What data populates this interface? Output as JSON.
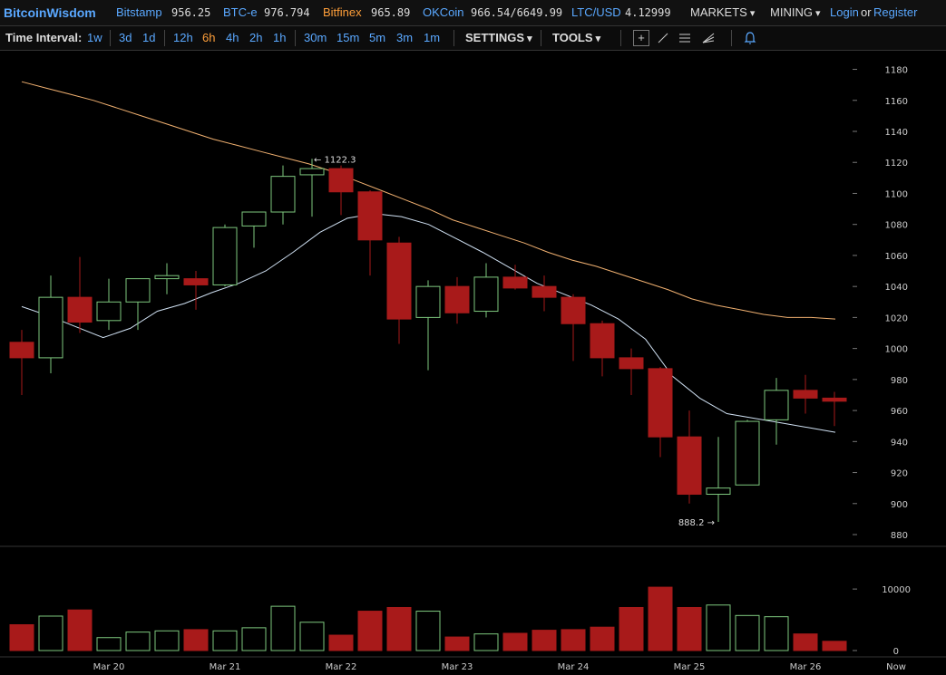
{
  "header": {
    "brand": "BitcoinWisdom",
    "markets": [
      {
        "name": "Bitstamp",
        "price": "956.25"
      },
      {
        "name": "BTC-e",
        "price": "976.794"
      },
      {
        "name": "Bitfinex",
        "price": "965.89"
      },
      {
        "name": "OKCoin",
        "price": "966.54/6649.99"
      },
      {
        "name": "LTC/USD",
        "price": "4.12999"
      }
    ],
    "markets_menu": "MARKETS",
    "mining_menu": "MINING",
    "login": "Login",
    "or": "or",
    "register": "Register"
  },
  "toolbar": {
    "time_interval_label": "Time Interval:",
    "intervals": [
      "1w",
      "3d",
      "1d",
      "12h",
      "6h",
      "4h",
      "2h",
      "1h",
      "30m",
      "15m",
      "5m",
      "3m",
      "1m"
    ],
    "selected_interval": "6h",
    "settings": "SETTINGS",
    "tools": "TOOLS",
    "icons": [
      "crosshair-icon",
      "line-draw-icon",
      "fibonacci-icon",
      "fan-icon",
      "alert-bell-icon"
    ]
  },
  "colors": {
    "up": "#7ec87e",
    "down": "#a81a1a",
    "ma_fast": "#cfe0f2",
    "ma_slow": "#f0b070",
    "link": "#5aa8ff",
    "accent": "#ff9f3a"
  },
  "chart_data": {
    "type": "candlestick",
    "x_labels": [
      "Mar 20",
      "Mar 21",
      "Mar 22",
      "Mar 23",
      "Mar 24",
      "Mar 25",
      "Mar 26",
      "Now"
    ],
    "y_ticks": [
      880,
      900,
      920,
      940,
      960,
      980,
      1000,
      1020,
      1040,
      1060,
      1080,
      1100,
      1120,
      1140,
      1160,
      1180
    ],
    "ylim": [
      873,
      1192
    ],
    "annotations": [
      {
        "label": "1122.3",
        "value": 1122.3,
        "index": 10
      },
      {
        "label": "888.2",
        "value": 888.2,
        "index": 24
      }
    ],
    "candles": [
      {
        "o": 1004,
        "h": 1012,
        "l": 970,
        "c": 994
      },
      {
        "o": 994,
        "h": 1047,
        "l": 984,
        "c": 1033
      },
      {
        "o": 1033,
        "h": 1059,
        "l": 1010,
        "c": 1017
      },
      {
        "o": 1018,
        "h": 1045,
        "l": 1012,
        "c": 1030
      },
      {
        "o": 1030,
        "h": 1045,
        "l": 1012,
        "c": 1045
      },
      {
        "o": 1045,
        "h": 1055,
        "l": 1035,
        "c": 1047
      },
      {
        "o": 1045,
        "h": 1050,
        "l": 1025,
        "c": 1041
      },
      {
        "o": 1041,
        "h": 1080,
        "l": 1040,
        "c": 1078
      },
      {
        "o": 1079,
        "h": 1088,
        "l": 1065,
        "c": 1088
      },
      {
        "o": 1088,
        "h": 1118,
        "l": 1080,
        "c": 1111
      },
      {
        "o": 1112,
        "h": 1122.3,
        "l": 1085,
        "c": 1116
      },
      {
        "o": 1116,
        "h": 1118,
        "l": 1086,
        "c": 1101
      },
      {
        "o": 1101,
        "h": 1102,
        "l": 1047,
        "c": 1070
      },
      {
        "o": 1068,
        "h": 1072,
        "l": 1003,
        "c": 1019
      },
      {
        "o": 1020,
        "h": 1044,
        "l": 986,
        "c": 1040
      },
      {
        "o": 1040,
        "h": 1046,
        "l": 1016,
        "c": 1023
      },
      {
        "o": 1024,
        "h": 1055,
        "l": 1020,
        "c": 1046
      },
      {
        "o": 1046,
        "h": 1054,
        "l": 1038,
        "c": 1039
      },
      {
        "o": 1040,
        "h": 1047,
        "l": 1024,
        "c": 1033
      },
      {
        "o": 1033,
        "h": 1035,
        "l": 992,
        "c": 1016
      },
      {
        "o": 1016,
        "h": 1018,
        "l": 982,
        "c": 994
      },
      {
        "o": 994,
        "h": 1000,
        "l": 970,
        "c": 987
      },
      {
        "o": 987,
        "h": 988,
        "l": 930,
        "c": 943
      },
      {
        "o": 943,
        "h": 960,
        "l": 900,
        "c": 906
      },
      {
        "o": 906,
        "h": 943,
        "l": 888.2,
        "c": 910
      },
      {
        "o": 912,
        "h": 954,
        "l": 912,
        "c": 953
      },
      {
        "o": 954,
        "h": 981,
        "l": 938,
        "c": 973
      },
      {
        "o": 973,
        "h": 983,
        "l": 958,
        "c": 968
      },
      {
        "o": 968,
        "h": 972,
        "l": 950,
        "c": 966
      }
    ],
    "ma_fast": [
      1027,
      1021,
      1014,
      1007,
      1013,
      1024,
      1029,
      1036,
      1042,
      1050,
      1062,
      1075,
      1084,
      1087,
      1085,
      1080,
      1071,
      1062,
      1052,
      1042,
      1035,
      1028,
      1019,
      1006,
      982,
      968,
      958,
      955,
      952,
      949,
      946
    ],
    "ma_slow": [
      1172,
      1168,
      1164,
      1160,
      1155,
      1150,
      1145,
      1140,
      1135,
      1131,
      1127,
      1123,
      1119,
      1114,
      1108,
      1102,
      1096,
      1090,
      1083,
      1078,
      1073,
      1068,
      1062,
      1057,
      1053,
      1048,
      1043,
      1038,
      1032,
      1028,
      1025,
      1022,
      1020,
      1020,
      1019
    ],
    "volume": {
      "ticks": [
        0,
        10000
      ],
      "ymax": 16500,
      "values": [
        4200,
        5600,
        6600,
        2100,
        3000,
        3200,
        3400,
        3200,
        3700,
        7200,
        4600,
        2500,
        6400,
        7000,
        6400,
        2200,
        2700,
        2800,
        3300,
        3400,
        3800,
        7000,
        10300,
        7000,
        7400,
        5700,
        5500,
        2700,
        1500
      ]
    }
  }
}
